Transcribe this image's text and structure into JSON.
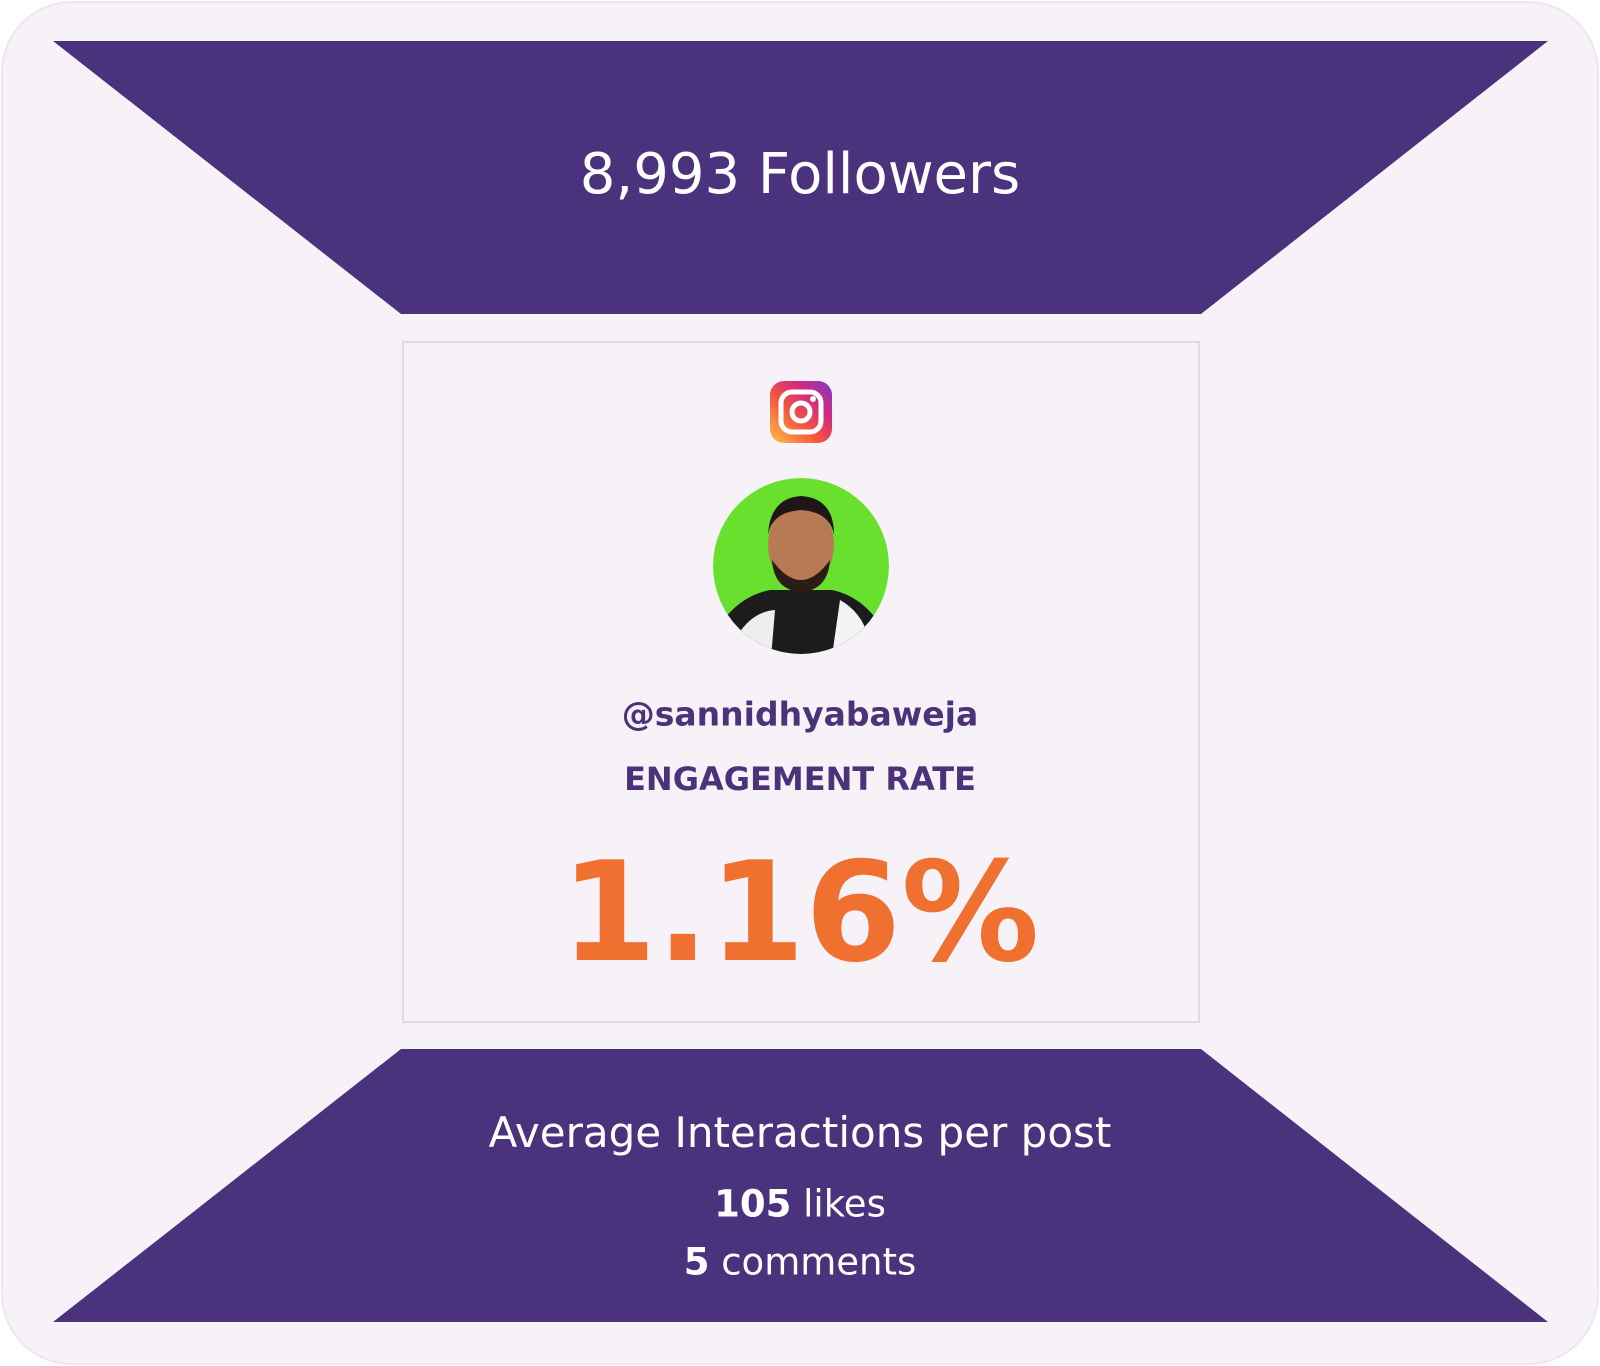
{
  "followers": "8,993 Followers",
  "profile": {
    "handle": "@sannidhyabaweja",
    "metric_label": "ENGAGEMENT RATE",
    "metric_value": "1.16%"
  },
  "interactions": {
    "title": "Average Interactions per post",
    "likes": {
      "count": "105",
      "label": "likes"
    },
    "comments": {
      "count": "5",
      "label": "comments"
    }
  }
}
